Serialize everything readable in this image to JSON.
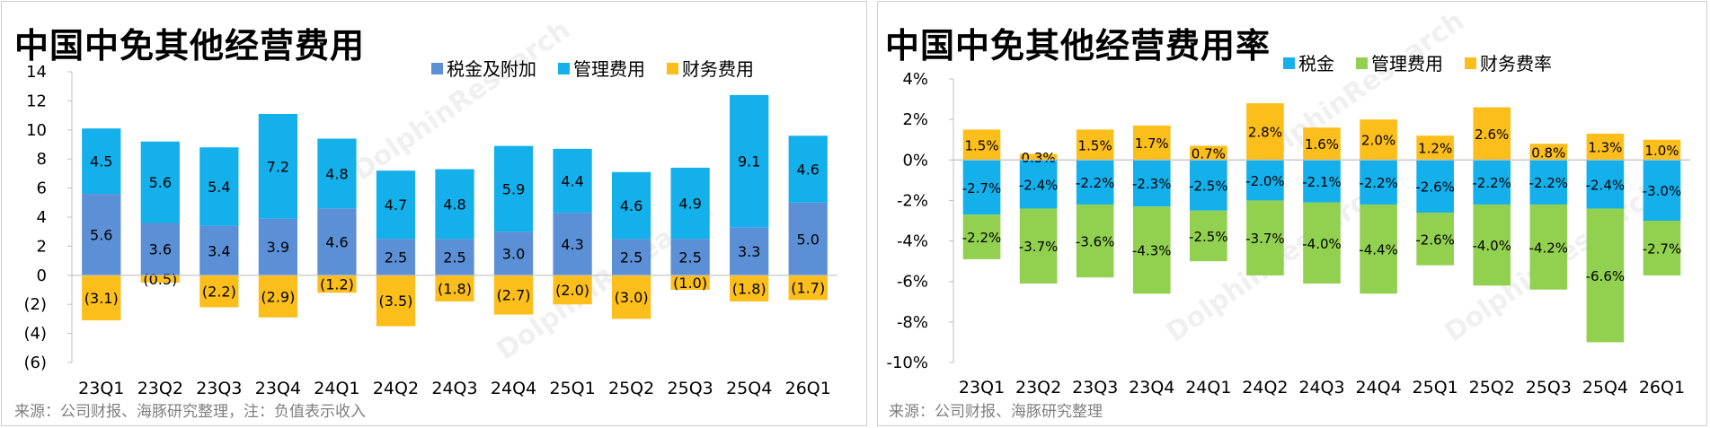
{
  "left_chart": {
    "title": "中国中免其他经营费用",
    "source": "来源：公司财报、海豚研究整理，注：负值表示收入",
    "watermark": "DolphinResearch",
    "chart_data": {
      "type": "bar",
      "stacked": true,
      "categories": [
        "23Q1",
        "23Q2",
        "23Q3",
        "23Q4",
        "24Q1",
        "24Q2",
        "24Q3",
        "24Q4",
        "25Q1",
        "25Q2",
        "25Q3",
        "25Q4",
        "26Q1"
      ],
      "series": [
        {
          "name": "税金及附加",
          "color": "#5b8fd6",
          "values": [
            5.6,
            3.6,
            3.4,
            3.9,
            4.6,
            2.5,
            2.5,
            3.0,
            4.3,
            2.5,
            2.5,
            3.3,
            5.0
          ],
          "labels": [
            "5.6",
            "3.6",
            "3.4",
            "3.9",
            "4.6",
            "2.5",
            "2.5",
            "3.0",
            "4.3",
            "2.5",
            "2.5",
            "3.3",
            "5.0"
          ]
        },
        {
          "name": "管理费用",
          "color": "#13b0ec",
          "values": [
            4.5,
            5.6,
            5.4,
            7.2,
            4.8,
            4.7,
            4.8,
            5.9,
            4.4,
            4.6,
            4.9,
            9.1,
            4.6
          ],
          "labels": [
            "4.5",
            "5.6",
            "5.4",
            "7.2",
            "4.8",
            "4.7",
            "4.8",
            "5.9",
            "4.4",
            "4.6",
            "4.9",
            "9.1",
            "4.6"
          ]
        },
        {
          "name": "财务费用",
          "color": "#fcbe1a",
          "values": [
            -3.1,
            -0.5,
            -2.2,
            -2.9,
            -1.2,
            -3.5,
            -1.8,
            -2.7,
            -2.0,
            -3.0,
            -1.0,
            -1.8,
            -1.7
          ],
          "labels": [
            "(3.1)",
            "(0.5)",
            "(2.2)",
            "(2.9)",
            "(1.2)",
            "(3.5)",
            "(1.8)",
            "(2.7)",
            "(2.0)",
            "(3.0)",
            "(1.0)",
            "(1.8)",
            "(1.7)"
          ]
        }
      ],
      "y_ticks": [
        "14",
        "12",
        "10",
        "8",
        "6",
        "4",
        "2",
        "0",
        "(2)",
        "(4)",
        "(6)"
      ],
      "ylim": [
        -6,
        14
      ],
      "y_step": 2,
      "legend_position": "top-right"
    }
  },
  "right_chart": {
    "title": "中国中免其他经营费用率",
    "source": "来源：公司财报、海豚研究整理",
    "watermark": "DolphinResearch",
    "chart_data": {
      "type": "bar",
      "stacked": true,
      "unit": "%",
      "categories": [
        "23Q1",
        "23Q2",
        "23Q3",
        "23Q4",
        "24Q1",
        "24Q2",
        "24Q3",
        "24Q4",
        "25Q1",
        "25Q2",
        "25Q3",
        "25Q4",
        "26Q1"
      ],
      "series": [
        {
          "name": "税金",
          "color": "#13b0ec",
          "values": [
            -2.7,
            -2.4,
            -2.2,
            -2.3,
            -2.5,
            -2.0,
            -2.1,
            -2.2,
            -2.6,
            -2.2,
            -2.2,
            -2.4,
            -3.0
          ],
          "labels": [
            "-2.7%",
            "-2.4%",
            "-2.2%",
            "-2.3%",
            "-2.5%",
            "-2.0%",
            "-2.1%",
            "-2.2%",
            "-2.6%",
            "-2.2%",
            "-2.2%",
            "-2.4%",
            "-3.0%"
          ]
        },
        {
          "name": "管理费用",
          "color": "#92d050",
          "values": [
            -2.2,
            -3.7,
            -3.6,
            -4.3,
            -2.5,
            -3.7,
            -4.0,
            -4.4,
            -2.6,
            -4.0,
            -4.2,
            -6.6,
            -2.7
          ],
          "labels": [
            "-2.2%",
            "-3.7%",
            "-3.6%",
            "-4.3%",
            "-2.5%",
            "-3.7%",
            "-4.0%",
            "-4.4%",
            "-2.6%",
            "-4.0%",
            "-4.2%",
            "-6.6%",
            "-2.7%"
          ]
        },
        {
          "name": "财务费率",
          "color": "#fcbe1a",
          "values": [
            1.5,
            0.3,
            1.5,
            1.7,
            0.7,
            2.8,
            1.6,
            2.0,
            1.2,
            2.6,
            0.8,
            1.3,
            1.0
          ],
          "labels": [
            "1.5%",
            "0.3%",
            "1.5%",
            "1.7%",
            "0.7%",
            "2.8%",
            "1.6%",
            "2.0%",
            "1.2%",
            "2.6%",
            "0.8%",
            "1.3%",
            "1.0%"
          ]
        }
      ],
      "y_ticks": [
        "4%",
        "2%",
        "0%",
        "-2%",
        "-4%",
        "-6%",
        "-8%",
        "-10%"
      ],
      "ylim": [
        -10,
        4
      ],
      "y_step": 2,
      "legend_position": "top-right"
    }
  }
}
